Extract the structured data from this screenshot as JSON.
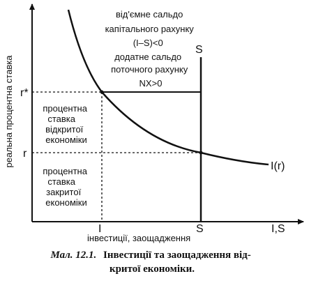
{
  "diagram": {
    "y_axis_label": "реальна процентна ставка",
    "x_axis_label": "інвестиції, заощадження",
    "x_axis_end_label": "I,S",
    "tick_r_star": "r*",
    "tick_r": "r",
    "tick_I": "I",
    "tick_S": "S",
    "curve_S_label": "S",
    "curve_I_label": "I(r)",
    "top_note": [
      "від'ємне сальдо",
      "капітального рахунку",
      "(I–S)<0",
      "додатне сальдо",
      "поточного рахунку",
      "NX>0"
    ],
    "open_rate_note": [
      "процентна",
      "ставка",
      "відкритої",
      "економіки"
    ],
    "closed_rate_note": [
      "процентна",
      "ставка",
      "закритої",
      "економіки"
    ]
  },
  "caption": {
    "prefix": "Мал. 12.1.",
    "line1": "Інвестиції та заощадження від-",
    "line2": "критої економіки."
  }
}
